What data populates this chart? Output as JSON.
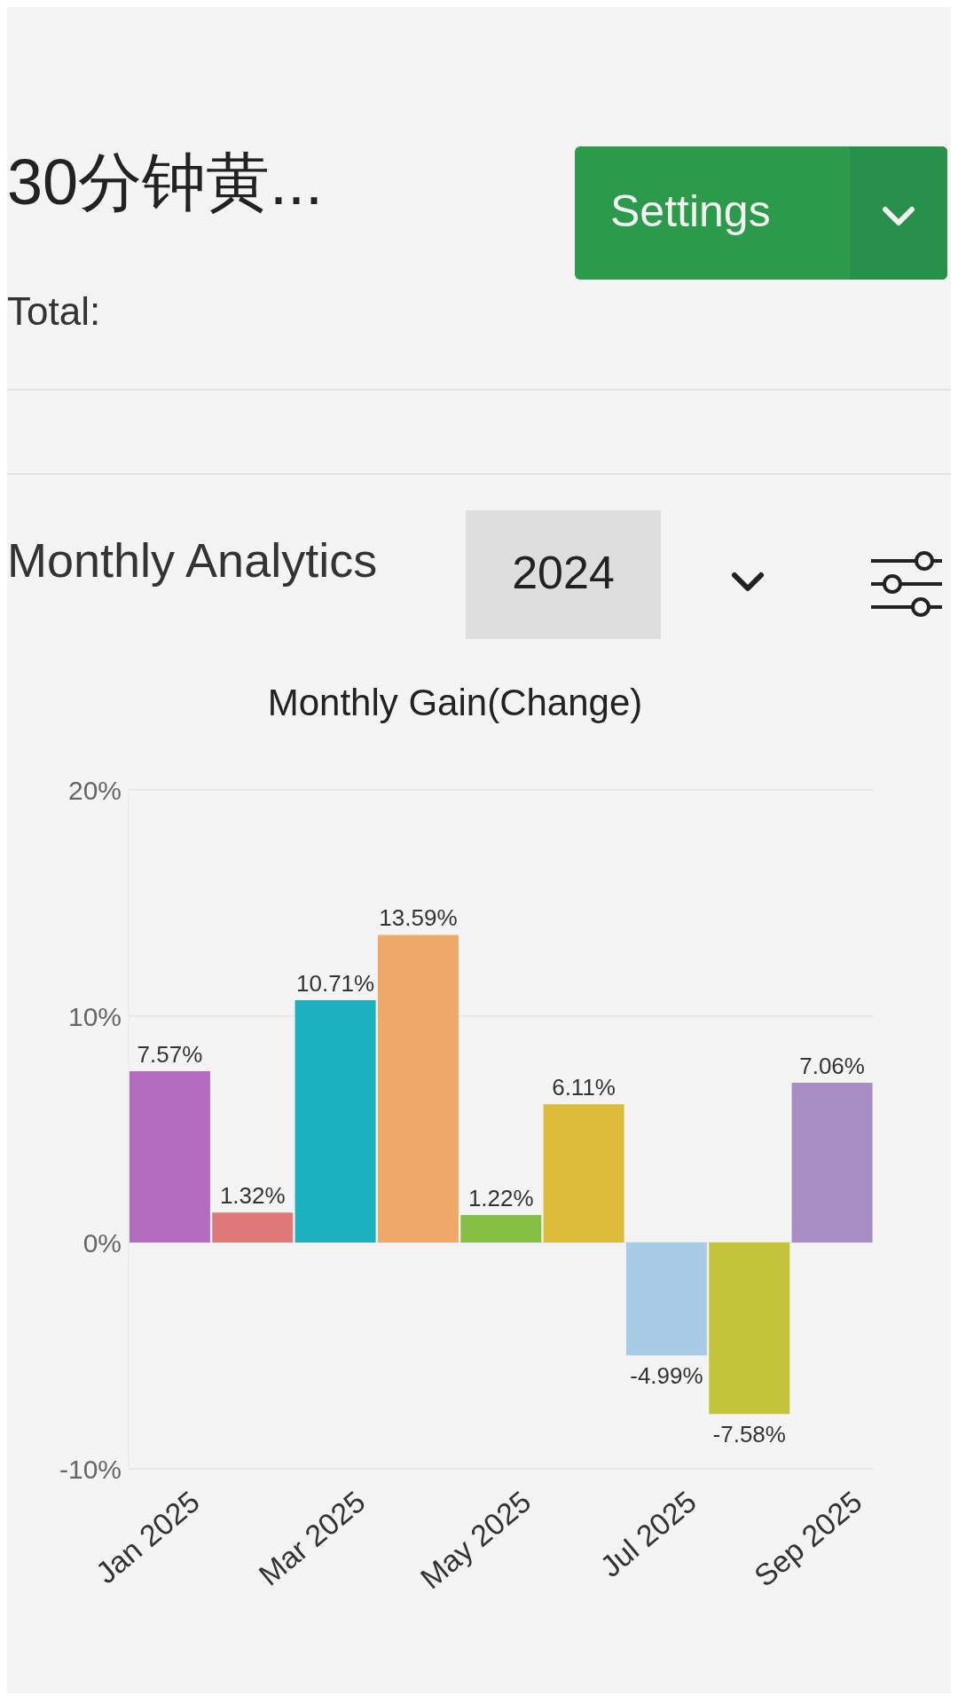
{
  "chart_data": {
    "type": "bar",
    "title": "Monthly Gain(Change)",
    "annotations": [
      "30分钟黄...",
      "Settings",
      "Total:",
      "Monthly Analytics",
      "2024"
    ],
    "categories": [
      "Jan 2025",
      null,
      "Mar 2025",
      null,
      "May 2025",
      null,
      "Jul 2025",
      null,
      "Sep 2025"
    ],
    "values": [
      7.57,
      1.32,
      10.71,
      13.59,
      1.22,
      6.11,
      -4.99,
      -7.58,
      7.06
    ],
    "colors": [
      "#b46cc0",
      "#e07a7a",
      "#1ab0c0",
      "#f0a868",
      "#86c042",
      "#dcbc38",
      "#a8cbe6",
      "#c4c43a",
      "#a88cc4"
    ],
    "value_labels": [
      "7.57%",
      "1.32%",
      "10.71%",
      "13.59%",
      "1.22%",
      "6.11%",
      "-4.99%",
      "-7.58%",
      "7.06%"
    ],
    "ylim": [
      -10,
      20
    ],
    "yticks": [
      {
        "value": -10,
        "label": "-10%"
      },
      {
        "value": 0,
        "label": "0%"
      },
      {
        "value": 10,
        "label": "10%"
      },
      {
        "value": 20,
        "label": "20%"
      }
    ],
    "grid": "y"
  }
}
